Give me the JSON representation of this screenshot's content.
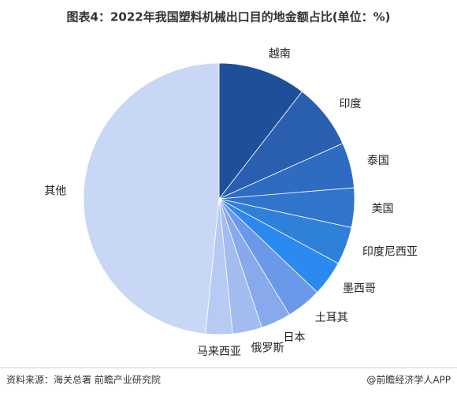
{
  "chart_data": {
    "type": "pie",
    "title": "图表4：2022年我国塑料机械出口目的地金额占比(单位：%)",
    "categories": [
      "越南",
      "印度",
      "泰国",
      "美国",
      "印度尼西亚",
      "墨西哥",
      "土耳其",
      "日本",
      "俄罗斯",
      "马来西亚",
      "其他"
    ],
    "values": [
      10.5,
      7.8,
      5.4,
      4.7,
      4.5,
      4.2,
      4.2,
      3.6,
      3.5,
      3.2,
      48.4
    ],
    "colors": [
      "#1f4f98",
      "#2a5fb0",
      "#2e6cc2",
      "#3174cc",
      "#2f80d8",
      "#2b8af0",
      "#6c98e9",
      "#88aaec",
      "#a3bcf0",
      "#b6caf3",
      "#c9d7f6"
    ],
    "source": "资料来源：海关总署 前瞻产业研究院",
    "credit": "@前瞻经济学人APP"
  }
}
